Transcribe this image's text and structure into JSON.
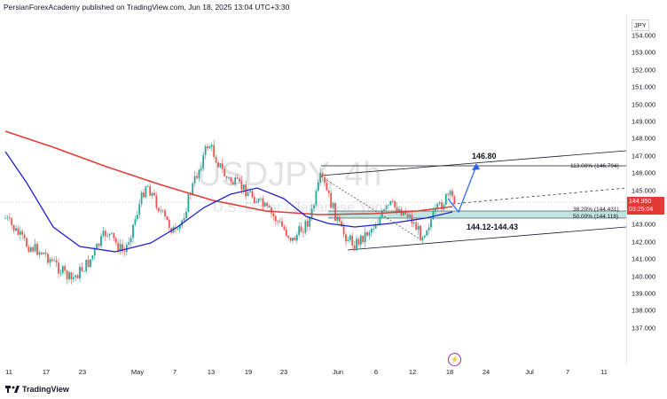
{
  "header": {
    "publisher_line": "PersianForexAcademy published on TradingView.com, Jun 18, 2025 13:04 UTC+3:30"
  },
  "watermark": {
    "symbol": "USDJPY, 4h",
    "description": "U.S. Dollar / Japanese Yen"
  },
  "axis": {
    "currency": "JPY",
    "y_ticks": [
      "154.000",
      "153.000",
      "152.000",
      "151.000",
      "150.000",
      "149.000",
      "148.000",
      "147.000",
      "146.000",
      "145.000",
      "144.000",
      "143.000",
      "142.000",
      "141.000",
      "140.000",
      "139.000",
      "138.000",
      "137.000"
    ],
    "x_ticks": [
      "11",
      "17",
      "23",
      "May",
      "7",
      "13",
      "19",
      "23",
      "Jun",
      "6",
      "12",
      "18",
      "24",
      "Jul",
      "7",
      "11"
    ]
  },
  "price_badge": {
    "price": "144.950",
    "countdown": "03:25:04"
  },
  "annotations": {
    "target_label": "146.80",
    "zone_label": "144.12-144.43",
    "fib_1130": "113.00% (146.794)",
    "fib_382": "38.20% (144.431)",
    "fib_500": "50.00% (144.118)"
  },
  "colors": {
    "up_candle": "#26a69a",
    "down_candle": "#ef5350",
    "ma_fast": "#1e22cc",
    "ma_slow": "#e53935",
    "zone_fill": "#b2dfdb",
    "arrow": "#2962ff"
  },
  "footer": {
    "brand": "TradingView"
  }
}
